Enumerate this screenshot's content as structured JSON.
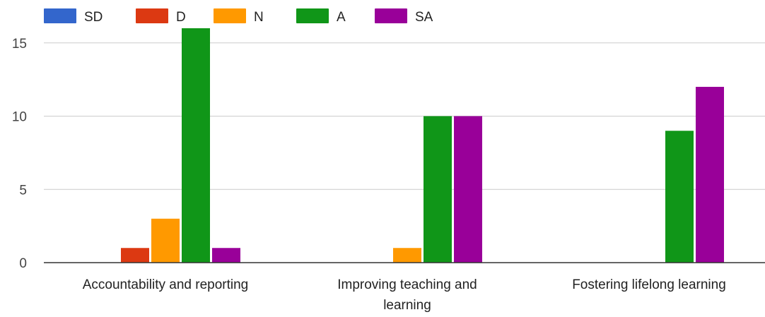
{
  "chart_data": {
    "type": "bar",
    "title": "",
    "xlabel": "",
    "ylabel": "",
    "categories": [
      [
        "Accountability and reporting"
      ],
      [
        "Improving teaching and",
        "learning"
      ],
      [
        "Fostering lifelong learning"
      ]
    ],
    "series": [
      {
        "name": "SD",
        "color": "#3366cc",
        "values": [
          0,
          0,
          0
        ]
      },
      {
        "name": "D",
        "color": "#dc3912",
        "values": [
          1,
          0,
          0
        ]
      },
      {
        "name": "N",
        "color": "#ff9900",
        "values": [
          3,
          1,
          0
        ]
      },
      {
        "name": "A",
        "color": "#109618",
        "values": [
          16,
          10,
          9
        ]
      },
      {
        "name": "SA",
        "color": "#990099",
        "values": [
          1,
          10,
          12
        ]
      }
    ],
    "ylim": [
      0,
      16
    ],
    "yticks": [
      0,
      5,
      10,
      15
    ],
    "grid": true,
    "legend_position": "top-left"
  }
}
